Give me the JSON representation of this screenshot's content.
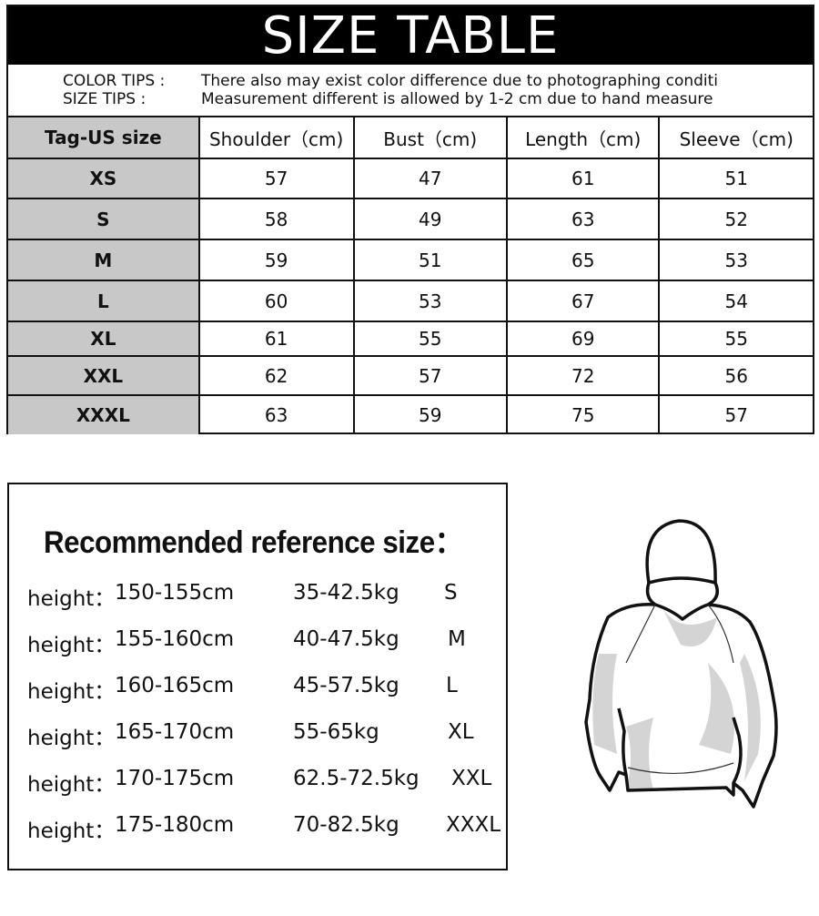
{
  "title": "SIZE TABLE",
  "tips": [
    {
      "label": "COLOR TIPS :",
      "text": "There also may exist color difference due to photographing conditi"
    },
    {
      "label": "SIZE TIPS :",
      "text": "Measurement different is allowed by 1-2 cm due to hand measure"
    }
  ],
  "table": {
    "headers": [
      "Tag-US size",
      "Shoulder（cm)",
      "Bust（cm)",
      "Length（cm)",
      "Sleeve（cm)"
    ],
    "rows": [
      [
        "XS",
        "57",
        "47",
        "61",
        "51"
      ],
      [
        "S",
        "58",
        "49",
        "63",
        "52"
      ],
      [
        "M",
        "59",
        "51",
        "65",
        "53"
      ],
      [
        "L",
        "60",
        "53",
        "67",
        "54"
      ],
      [
        "XL",
        "61",
        "55",
        "69",
        "55"
      ],
      [
        "XXL",
        "62",
        "57",
        "72",
        "56"
      ],
      [
        "XXXL",
        "63",
        "59",
        "75",
        "57"
      ]
    ]
  },
  "reference": {
    "title": "Recommended reference size：",
    "rows": [
      {
        "label": "height：",
        "height": "150-155cm",
        "weight": "35-42.5kg",
        "size": "S"
      },
      {
        "label": "height：",
        "height": "155-160cm",
        "weight": "40-47.5kg",
        "size": "M"
      },
      {
        "label": "height：",
        "height": "160-165cm",
        "weight": "45-57.5kg",
        "size": "L"
      },
      {
        "label": "height：",
        "height": "165-170cm",
        "weight": "55-65kg",
        "size": "XL"
      },
      {
        "label": "height：",
        "height": "170-175cm",
        "weight": "62.5-72.5kg",
        "size": "XXL"
      },
      {
        "label": "height：",
        "height": "175-180cm",
        "weight": "70-82.5kg",
        "size": "XXXL"
      }
    ]
  },
  "illustration": {
    "icon": "hoodie-illustration"
  }
}
